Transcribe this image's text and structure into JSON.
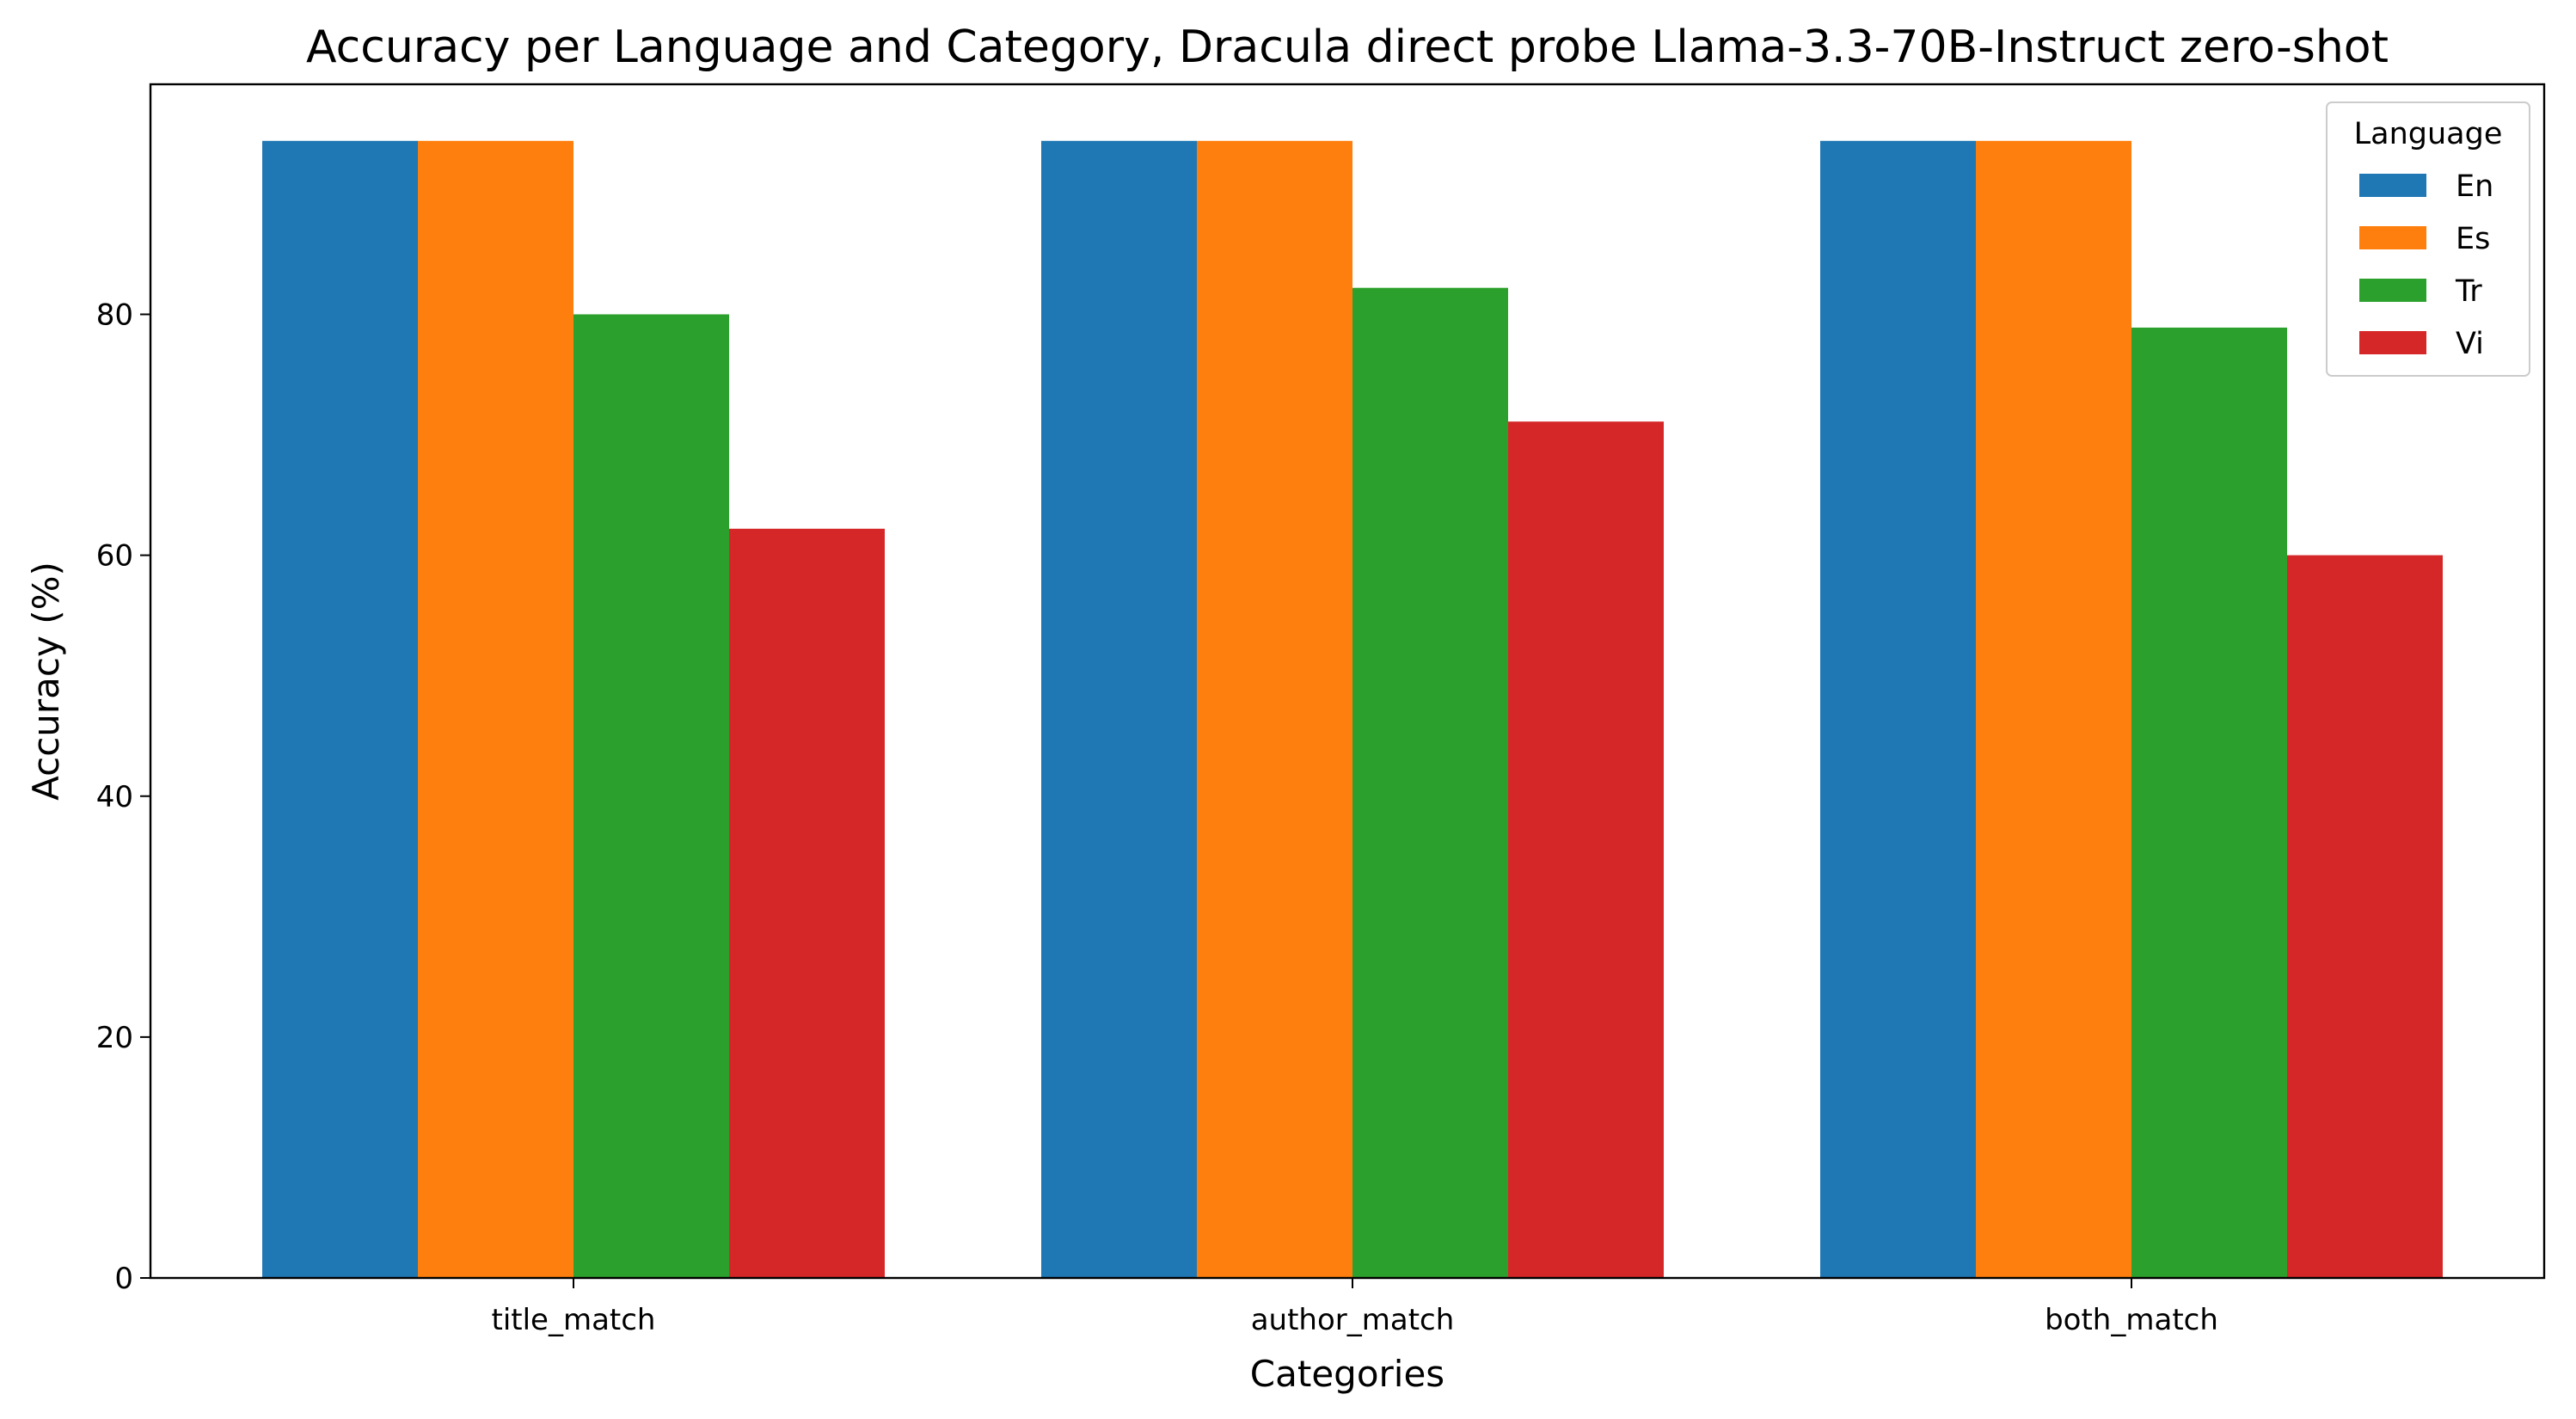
{
  "chart_data": {
    "type": "bar",
    "title": "Accuracy per Language and Category, Dracula direct probe Llama-3.3-70B-Instruct zero-shot",
    "xlabel": "Categories",
    "ylabel": "Accuracy (%)",
    "categories": [
      "title_match",
      "author_match",
      "both_match"
    ],
    "series": [
      {
        "name": "En",
        "color": "#1f77b4",
        "values": [
          94.4,
          94.4,
          94.4
        ]
      },
      {
        "name": "Es",
        "color": "#ff7f0e",
        "values": [
          94.4,
          94.4,
          94.4
        ]
      },
      {
        "name": "Tr",
        "color": "#2ca02c",
        "values": [
          80.0,
          82.2,
          78.9
        ]
      },
      {
        "name": "Vi",
        "color": "#d62728",
        "values": [
          62.2,
          71.1,
          60.0
        ]
      }
    ],
    "ylim": [
      0,
      99.1
    ],
    "yticks": [
      0,
      20,
      40,
      60,
      80
    ],
    "legend": {
      "title": "Language",
      "position": "top-right"
    },
    "grid": false
  }
}
